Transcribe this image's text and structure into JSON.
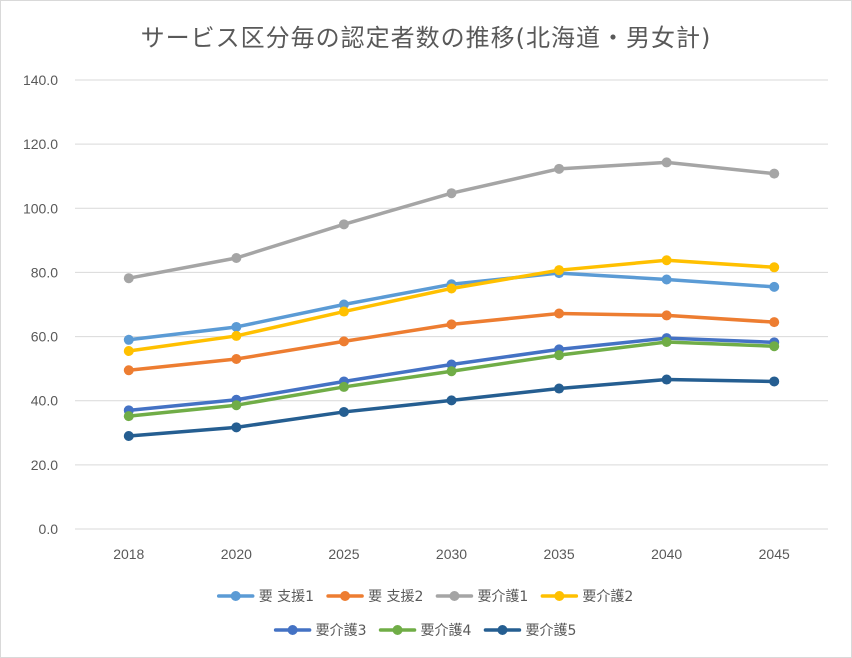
{
  "chart_data": {
    "type": "line",
    "title": "サービス区分毎の認定者数の推移(北海道・男女計)",
    "xlabel": "",
    "ylabel": "",
    "categories": [
      "2018",
      "2020",
      "2025",
      "2030",
      "2035",
      "2040",
      "2045"
    ],
    "ylim": [
      0,
      140
    ],
    "yticks": [
      "0.0",
      "20.0",
      "40.0",
      "60.0",
      "80.0",
      "100.0",
      "120.0",
      "140.0"
    ],
    "grid": true,
    "legend_position": "bottom",
    "series": [
      {
        "name": "要 支援1",
        "color": "#5b9bd5",
        "values": [
          59.0,
          63.0,
          70.0,
          76.3,
          79.8,
          77.8,
          75.5
        ]
      },
      {
        "name": "要 支援2",
        "color": "#ed7d31",
        "values": [
          49.5,
          53.0,
          58.5,
          63.8,
          67.2,
          66.6,
          64.5
        ]
      },
      {
        "name": "要介護1",
        "color": "#a5a5a5",
        "values": [
          78.2,
          84.5,
          95.0,
          104.7,
          112.3,
          114.3,
          110.8
        ]
      },
      {
        "name": "要介護2",
        "color": "#ffc000",
        "values": [
          55.5,
          60.2,
          67.8,
          75.0,
          80.7,
          83.8,
          81.6
        ]
      },
      {
        "name": "要介護3",
        "color": "#4472c4",
        "values": [
          37.0,
          40.3,
          46.0,
          51.3,
          56.0,
          59.5,
          58.2
        ]
      },
      {
        "name": "要介護4",
        "color": "#70ad47",
        "values": [
          35.2,
          38.6,
          44.3,
          49.2,
          54.2,
          58.3,
          57.0
        ]
      },
      {
        "name": "要介護5",
        "color": "#255e91",
        "values": [
          29.0,
          31.7,
          36.5,
          40.1,
          43.8,
          46.6,
          46.0
        ]
      }
    ]
  }
}
